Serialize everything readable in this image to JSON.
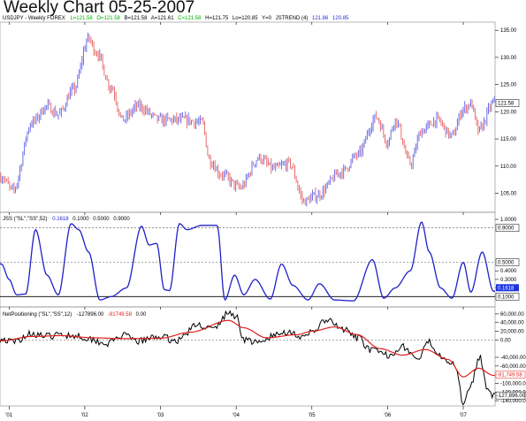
{
  "title": "Weekly Chart 05-25-2007",
  "header": {
    "symbol": "USDJPY - Weekly  FOREX",
    "l_val": "L=121.58",
    "o_val": "O=121.58",
    "b_val": "B=121.58",
    "a_val": "A=121.61",
    "c_val": "C=121.58",
    "h_val": "H=121.75",
    "lo_val": "Lo=120.85",
    "y_val": "Y=0",
    "jstrend": "JSTREND (4)",
    "jst1": "121.86",
    "jst2": "120.85"
  },
  "indicators": {
    "jss_label": "JSS (\"SL\",\"SS\",52)",
    "jss_v1": "0.1618",
    "jss_v2": "0.1000",
    "jss_v3": "0.5000",
    "jss_v4": "0.9000",
    "net_label": "NetPositioning (\"SL\",\"SS\",12)",
    "net_v1": "-127896.00",
    "net_v2": "-81749.58",
    "net_v3": "0.00"
  },
  "tags": {
    "price": "121.58",
    "jss_high": "0.9000",
    "jss_mid": "0.5000",
    "jss_cur": "0.1618",
    "jss_low": "0.1000",
    "net_avg": "-81,749.58",
    "net_cur": "-127,896.00"
  },
  "colors": {
    "up_bar": "#6f6fe8",
    "down_bar": "#e86f6f",
    "jss_line": "#2020c8",
    "net_line": "#000000",
    "net_avg_line": "#e02020",
    "cur_tag": "#1a35e0"
  },
  "chart_data": [
    {
      "type": "bar",
      "name": "USDJPY weekly OHLC",
      "x": [
        "'01",
        "'02",
        "'03",
        "'04",
        "'05",
        "'06",
        "'07"
      ],
      "y_ticks": [
        "105.00",
        "110.00",
        "115.00",
        "120.00",
        "125.00",
        "130.00",
        "135.00"
      ],
      "ylim": [
        101.5,
        136.5
      ],
      "trend_keyframes": [
        {
          "x": 2000.9,
          "y": 108.0
        },
        {
          "x": 2001.05,
          "y": 105.5
        },
        {
          "x": 2001.3,
          "y": 118.0
        },
        {
          "x": 2001.5,
          "y": 121.0
        },
        {
          "x": 2001.65,
          "y": 119.5
        },
        {
          "x": 2001.85,
          "y": 124.0
        },
        {
          "x": 2002.05,
          "y": 133.5
        },
        {
          "x": 2002.15,
          "y": 131.0
        },
        {
          "x": 2002.35,
          "y": 124.5
        },
        {
          "x": 2002.5,
          "y": 118.5
        },
        {
          "x": 2002.7,
          "y": 121.0
        },
        {
          "x": 2003.0,
          "y": 118.5
        },
        {
          "x": 2003.3,
          "y": 118.5
        },
        {
          "x": 2003.55,
          "y": 118.0
        },
        {
          "x": 2003.65,
          "y": 111.0
        },
        {
          "x": 2003.8,
          "y": 108.5
        },
        {
          "x": 2004.05,
          "y": 106.0
        },
        {
          "x": 2004.3,
          "y": 111.5
        },
        {
          "x": 2004.5,
          "y": 109.5
        },
        {
          "x": 2004.7,
          "y": 110.5
        },
        {
          "x": 2004.9,
          "y": 103.5
        },
        {
          "x": 2005.05,
          "y": 104.5
        },
        {
          "x": 2005.4,
          "y": 109.0
        },
        {
          "x": 2005.6,
          "y": 112.0
        },
        {
          "x": 2005.85,
          "y": 119.0
        },
        {
          "x": 2006.0,
          "y": 114.5
        },
        {
          "x": 2006.1,
          "y": 118.5
        },
        {
          "x": 2006.3,
          "y": 110.5
        },
        {
          "x": 2006.45,
          "y": 116.5
        },
        {
          "x": 2006.65,
          "y": 118.5
        },
        {
          "x": 2006.85,
          "y": 115.5
        },
        {
          "x": 2007.0,
          "y": 120.5
        },
        {
          "x": 2007.1,
          "y": 121.5
        },
        {
          "x": 2007.2,
          "y": 116.5
        },
        {
          "x": 2007.4,
          "y": 121.58
        }
      ]
    },
    {
      "type": "line",
      "name": "JSS (\"SL\",\"SS\",52)",
      "y_ticks": [
        "0.1000",
        "0.2000",
        "0.3000",
        "0.4000",
        "0.5000",
        "0.9000",
        "1.0000"
      ],
      "ylim": [
        0,
        1
      ],
      "levels": [
        0.9,
        0.5,
        0.1
      ],
      "keyframes": [
        {
          "x": 2000.9,
          "y": 0.48
        },
        {
          "x": 2001.0,
          "y": 0.3
        },
        {
          "x": 2001.1,
          "y": 0.12
        },
        {
          "x": 2001.22,
          "y": 0.13
        },
        {
          "x": 2001.35,
          "y": 0.88
        },
        {
          "x": 2001.5,
          "y": 0.35
        },
        {
          "x": 2001.65,
          "y": 0.12
        },
        {
          "x": 2001.82,
          "y": 0.95
        },
        {
          "x": 2001.92,
          "y": 0.88
        },
        {
          "x": 2002.05,
          "y": 0.62
        },
        {
          "x": 2002.2,
          "y": 0.06
        },
        {
          "x": 2002.35,
          "y": 0.1
        },
        {
          "x": 2002.55,
          "y": 0.2
        },
        {
          "x": 2002.75,
          "y": 0.92
        },
        {
          "x": 2002.85,
          "y": 0.7
        },
        {
          "x": 2002.95,
          "y": 0.72
        },
        {
          "x": 2003.05,
          "y": 0.18
        },
        {
          "x": 2003.12,
          "y": 0.17
        },
        {
          "x": 2003.25,
          "y": 0.95
        },
        {
          "x": 2003.35,
          "y": 0.88
        },
        {
          "x": 2003.55,
          "y": 0.93
        },
        {
          "x": 2003.75,
          "y": 0.93
        },
        {
          "x": 2003.85,
          "y": 0.06
        },
        {
          "x": 2003.98,
          "y": 0.35
        },
        {
          "x": 2004.1,
          "y": 0.12
        },
        {
          "x": 2004.25,
          "y": 0.3
        },
        {
          "x": 2004.45,
          "y": 0.07
        },
        {
          "x": 2004.6,
          "y": 0.48
        },
        {
          "x": 2004.75,
          "y": 0.23
        },
        {
          "x": 2004.95,
          "y": 0.06
        },
        {
          "x": 2005.1,
          "y": 0.25
        },
        {
          "x": 2005.3,
          "y": 0.06
        },
        {
          "x": 2005.55,
          "y": 0.05
        },
        {
          "x": 2005.8,
          "y": 0.53
        },
        {
          "x": 2005.95,
          "y": 0.08
        },
        {
          "x": 2006.1,
          "y": 0.2
        },
        {
          "x": 2006.3,
          "y": 0.4
        },
        {
          "x": 2006.45,
          "y": 0.97
        },
        {
          "x": 2006.55,
          "y": 0.62
        },
        {
          "x": 2006.7,
          "y": 0.2
        },
        {
          "x": 2006.85,
          "y": 0.08
        },
        {
          "x": 2007.0,
          "y": 0.5
        },
        {
          "x": 2007.1,
          "y": 0.15
        },
        {
          "x": 2007.25,
          "y": 0.62
        },
        {
          "x": 2007.4,
          "y": 0.1618
        }
      ]
    },
    {
      "type": "line",
      "name": "NetPositioning (\"SL\",\"SS\",12)",
      "y_ticks": [
        "60,000.00",
        "40,000.00",
        "20,000.00",
        "0.00",
        "-40,000.00",
        "-60,000.00",
        "-100,000.00",
        "-120,000.00",
        "-140,000.00"
      ],
      "ylim": [
        -150000,
        70000
      ],
      "zero_level": 0,
      "net_keyframes": [
        {
          "x": 2000.9,
          "y": 2000
        },
        {
          "x": 2001.05,
          "y": -5000
        },
        {
          "x": 2001.3,
          "y": 15000
        },
        {
          "x": 2001.5,
          "y": 8000
        },
        {
          "x": 2001.7,
          "y": 12000
        },
        {
          "x": 2001.9,
          "y": 10000
        },
        {
          "x": 2002.05,
          "y": 3000
        },
        {
          "x": 2002.3,
          "y": -8000
        },
        {
          "x": 2002.5,
          "y": 10000
        },
        {
          "x": 2002.7,
          "y": -3000
        },
        {
          "x": 2003.0,
          "y": 8000
        },
        {
          "x": 2003.2,
          "y": -2000
        },
        {
          "x": 2003.5,
          "y": 35000
        },
        {
          "x": 2003.7,
          "y": 25000
        },
        {
          "x": 2003.9,
          "y": 62000
        },
        {
          "x": 2004.0,
          "y": 55000
        },
        {
          "x": 2004.1,
          "y": 2000
        },
        {
          "x": 2004.3,
          "y": -8000
        },
        {
          "x": 2004.5,
          "y": 10000
        },
        {
          "x": 2004.7,
          "y": 20000
        },
        {
          "x": 2004.9,
          "y": 3000
        },
        {
          "x": 2005.0,
          "y": 20000
        },
        {
          "x": 2005.2,
          "y": 45000
        },
        {
          "x": 2005.4,
          "y": 25000
        },
        {
          "x": 2005.6,
          "y": 5000
        },
        {
          "x": 2005.8,
          "y": -25000
        },
        {
          "x": 2006.0,
          "y": -35000
        },
        {
          "x": 2006.2,
          "y": -15000
        },
        {
          "x": 2006.4,
          "y": -45000
        },
        {
          "x": 2006.55,
          "y": -5000
        },
        {
          "x": 2006.7,
          "y": -35000
        },
        {
          "x": 2006.9,
          "y": -60000
        },
        {
          "x": 2007.0,
          "y": -145000
        },
        {
          "x": 2007.1,
          "y": -100000
        },
        {
          "x": 2007.22,
          "y": -40000
        },
        {
          "x": 2007.32,
          "y": -110000
        },
        {
          "x": 2007.4,
          "y": -127896
        }
      ],
      "avg_keyframes": [
        {
          "x": 2000.9,
          "y": -2000
        },
        {
          "x": 2001.3,
          "y": 8000
        },
        {
          "x": 2001.7,
          "y": 10000
        },
        {
          "x": 2002.1,
          "y": 5000
        },
        {
          "x": 2002.5,
          "y": 3000
        },
        {
          "x": 2003.0,
          "y": 4000
        },
        {
          "x": 2003.4,
          "y": 18000
        },
        {
          "x": 2003.9,
          "y": 45000
        },
        {
          "x": 2004.1,
          "y": 28000
        },
        {
          "x": 2004.4,
          "y": 5000
        },
        {
          "x": 2004.8,
          "y": 12000
        },
        {
          "x": 2005.0,
          "y": 20000
        },
        {
          "x": 2005.3,
          "y": 30000
        },
        {
          "x": 2005.6,
          "y": 12000
        },
        {
          "x": 2005.9,
          "y": -20000
        },
        {
          "x": 2006.2,
          "y": -35000
        },
        {
          "x": 2006.5,
          "y": -22000
        },
        {
          "x": 2006.8,
          "y": -45000
        },
        {
          "x": 2007.0,
          "y": -85000
        },
        {
          "x": 2007.2,
          "y": -65000
        },
        {
          "x": 2007.4,
          "y": -81749.58
        }
      ]
    }
  ]
}
